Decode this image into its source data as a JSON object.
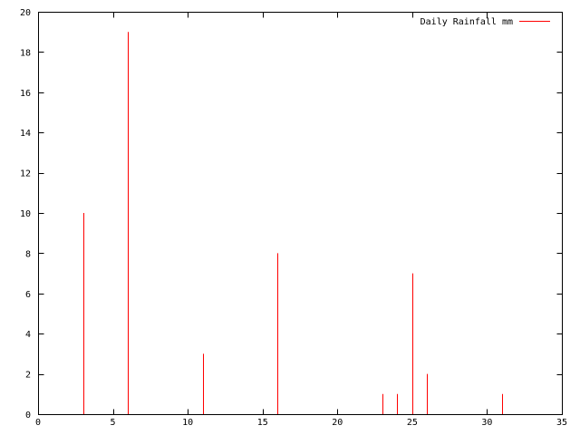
{
  "chart_data": {
    "type": "bar",
    "style": "impulses",
    "series": [
      {
        "name": "Daily Rainfall mm",
        "color": "#ff0000",
        "points": [
          {
            "x": 3,
            "y": 10
          },
          {
            "x": 6,
            "y": 19
          },
          {
            "x": 11,
            "y": 3
          },
          {
            "x": 16,
            "y": 8
          },
          {
            "x": 23,
            "y": 1
          },
          {
            "x": 24,
            "y": 1
          },
          {
            "x": 25,
            "y": 7
          },
          {
            "x": 26,
            "y": 2
          },
          {
            "x": 31,
            "y": 1
          }
        ]
      }
    ],
    "xlim": [
      0,
      35
    ],
    "ylim": [
      0,
      20
    ],
    "xticks": [
      0,
      5,
      10,
      15,
      20,
      25,
      30,
      35
    ],
    "yticks": [
      0,
      2,
      4,
      6,
      8,
      10,
      12,
      14,
      16,
      18,
      20
    ],
    "grid": false,
    "legend_position": "top-right",
    "title": "",
    "xlabel": "",
    "ylabel": ""
  }
}
